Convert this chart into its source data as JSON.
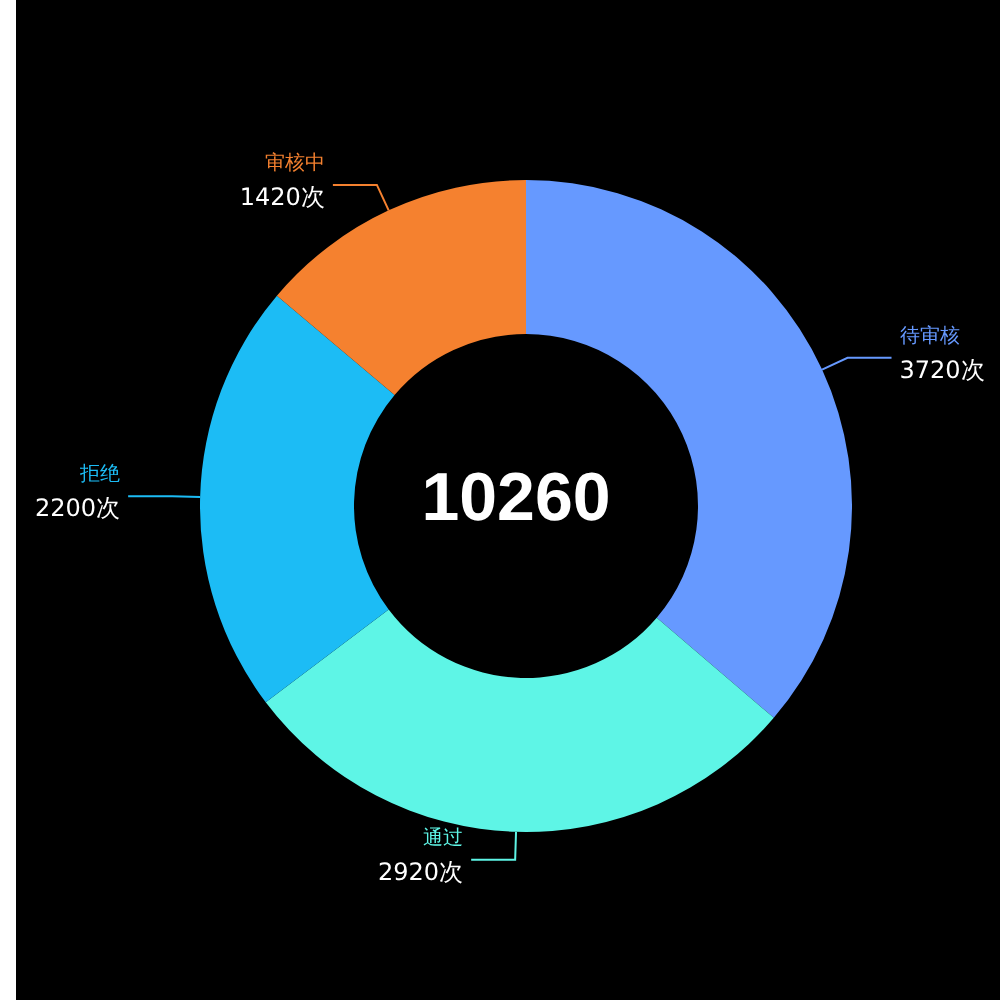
{
  "chart_data": {
    "type": "donut",
    "categories": [
      "待审核",
      "通过",
      "拒绝",
      "审核中"
    ],
    "values": [
      3720,
      2920,
      2200,
      1420
    ],
    "colors": [
      "#6699ff",
      "#5ef5e6",
      "#1cbcf5",
      "#f5812f"
    ],
    "value_labels": [
      "3720次",
      "2920次",
      "2200次",
      "1420次"
    ],
    "annotations": [
      "10260"
    ],
    "legend": false
  }
}
